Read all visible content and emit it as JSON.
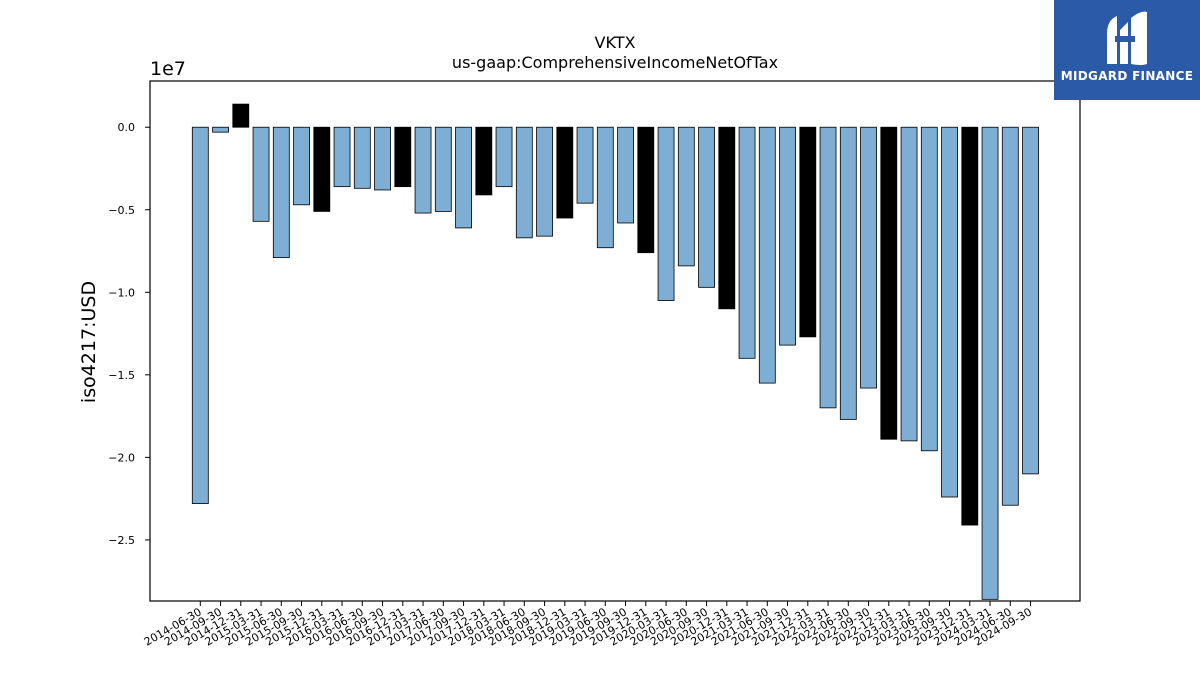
{
  "chart_data": {
    "type": "bar",
    "title": "VKTX",
    "subtitle": "us-gaap:ComprehensiveIncomeNetOfTax",
    "ylabel": "iso4217:USD",
    "xlabel": "",
    "y_scale_label": "1e7",
    "ylim": [
      -2.87,
      0.28
    ],
    "y_ticks": [
      0.0,
      -0.5,
      -1.0,
      -1.5,
      -2.0,
      -2.5
    ],
    "y_tick_labels": [
      "0.0",
      "−0.5",
      "−1.0",
      "−1.5",
      "−2.0",
      "−2.5"
    ],
    "grid": false,
    "colors": {
      "quarter": "#7eaed3",
      "year_end": "#000000",
      "edge": "#000000"
    },
    "categories": [
      "2014-06-30",
      "2014-09-30",
      "2014-12-31",
      "2015-03-31",
      "2015-06-30",
      "2015-09-30",
      "2015-12-31",
      "2016-03-31",
      "2016-06-30",
      "2016-09-30",
      "2016-12-31",
      "2017-03-31",
      "2017-06-30",
      "2017-09-30",
      "2017-12-31",
      "2018-03-31",
      "2018-06-30",
      "2018-09-30",
      "2018-12-31",
      "2019-03-31",
      "2019-06-30",
      "2019-09-30",
      "2019-12-31",
      "2020-03-31",
      "2020-06-30",
      "2020-09-30",
      "2020-12-31",
      "2021-03-31",
      "2021-06-30",
      "2021-09-30",
      "2021-12-31",
      "2022-03-31",
      "2022-06-30",
      "2022-09-30",
      "2022-12-31",
      "2023-03-31",
      "2023-06-30",
      "2023-09-30",
      "2023-12-31",
      "2024-03-31",
      "2024-06-30",
      "2024-09-30"
    ],
    "values": [
      -2.28,
      -0.03,
      0.14,
      -0.57,
      -0.79,
      -0.47,
      -0.51,
      -0.36,
      -0.37,
      -0.38,
      -0.36,
      -0.52,
      -0.51,
      -0.61,
      -0.41,
      -0.36,
      -0.67,
      -0.66,
      -0.55,
      -0.46,
      -0.73,
      -0.58,
      -0.76,
      -1.05,
      -0.84,
      -0.97,
      -1.1,
      -1.4,
      -1.55,
      -1.32,
      -1.27,
      -1.7,
      -1.77,
      -1.58,
      -1.89,
      -1.9,
      -1.96,
      -2.24,
      -2.41,
      -2.86,
      -2.29,
      -2.1
    ],
    "is_year_end": [
      false,
      false,
      true,
      false,
      false,
      false,
      true,
      false,
      false,
      false,
      true,
      false,
      false,
      false,
      true,
      false,
      false,
      false,
      true,
      false,
      false,
      false,
      true,
      false,
      false,
      false,
      true,
      false,
      false,
      false,
      true,
      false,
      false,
      false,
      true,
      false,
      false,
      false,
      true,
      false,
      false,
      false
    ]
  },
  "logo": {
    "text": "MIDGARD FINANCE"
  }
}
